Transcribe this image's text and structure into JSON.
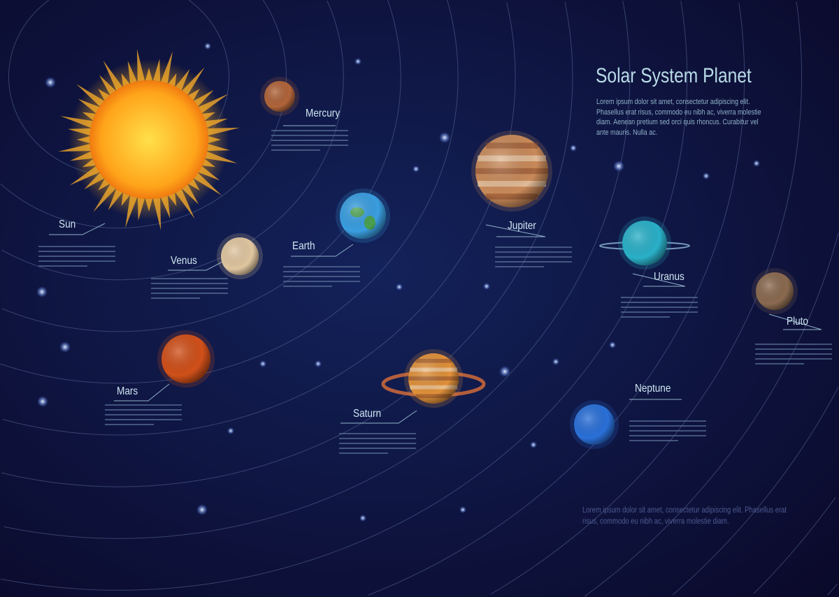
{
  "title": "Solar System Planet",
  "description": "Lorem ipsum dolor sit amet, consectetur adipiscing elit. Phasellus erat risus, commodo eu nibh ac, viverra molestie diam. Aenean pretium sed orci quis rhoncus. Curabitur vel ante mauris. Nulla ac.",
  "footer": "Lorem ipsum dolor sit amet, consectetur adipiscing elit. Phasellus erat risus, commodo eu nibh ac, viverra molestie diam.",
  "bodies": [
    {
      "name": "Sun",
      "color": "#ffb21a"
    },
    {
      "name": "Mercury",
      "color": "#b0643a"
    },
    {
      "name": "Venus",
      "color": "#e0c6a0"
    },
    {
      "name": "Earth",
      "color": "#3a9ee0"
    },
    {
      "name": "Mars",
      "color": "#d0501a"
    },
    {
      "name": "Jupiter",
      "color": "#c98a5a"
    },
    {
      "name": "Saturn",
      "color": "#e0903a"
    },
    {
      "name": "Uranus",
      "color": "#2ab0c8"
    },
    {
      "name": "Neptune",
      "color": "#2a70d8"
    },
    {
      "name": "Pluto",
      "color": "#8a6a50"
    }
  ]
}
